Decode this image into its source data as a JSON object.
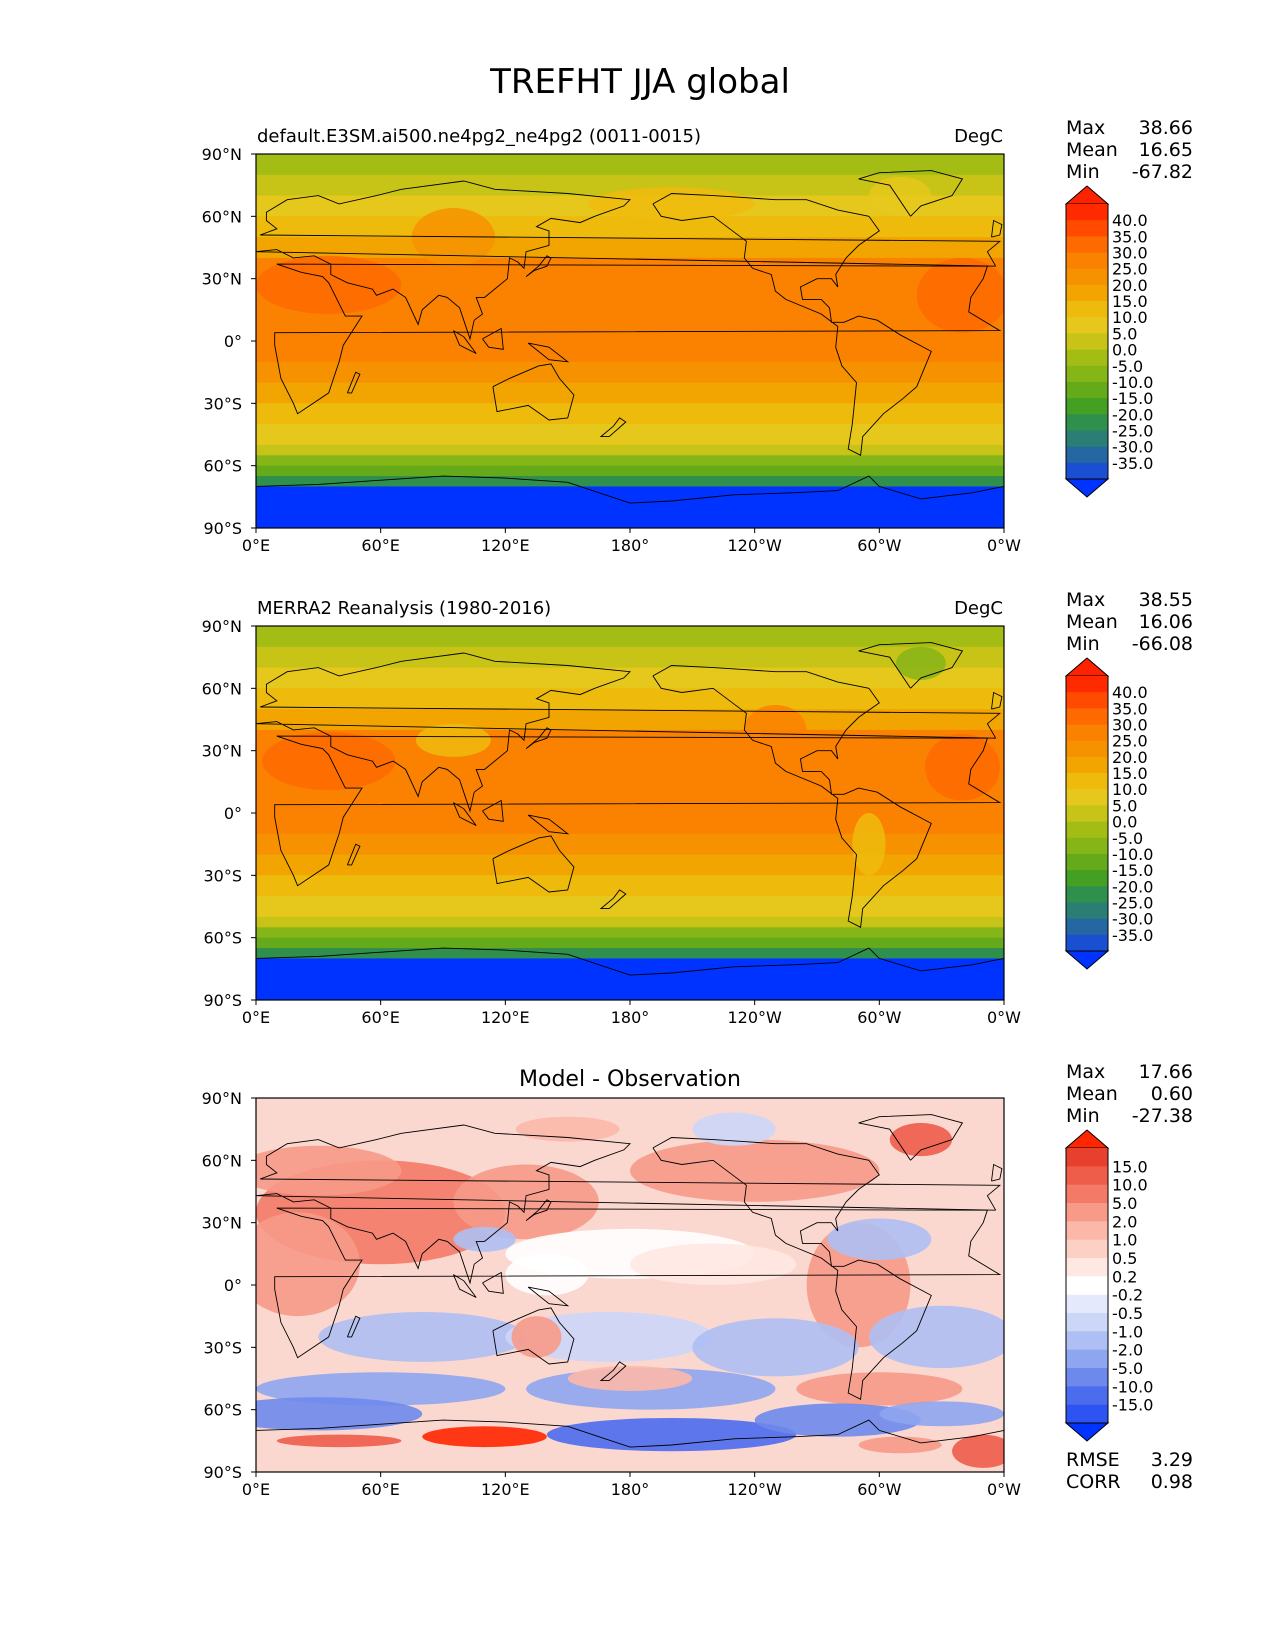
{
  "figure_title": "TREFHT JJA global",
  "x_ticks": [
    "0°E",
    "60°E",
    "120°E",
    "180°",
    "120°W",
    "60°W",
    "0°W"
  ],
  "y_ticks": [
    "90°N",
    "60°N",
    "30°N",
    "0°",
    "30°S",
    "60°S",
    "90°S"
  ],
  "chart_data": [
    {
      "type": "heatmap",
      "panel": "test",
      "title_left": "default.E3SM.ai500.ne4pg2_ne4pg2 (0011-0015)",
      "title_right": "DegC",
      "title_center": "",
      "stats": [
        {
          "label": "Max",
          "value": "38.66"
        },
        {
          "label": "Mean",
          "value": "16.65"
        },
        {
          "label": "Min",
          "value": "-67.82"
        }
      ],
      "colorbar_levels": [
        "40.0",
        "35.0",
        "30.0",
        "25.0",
        "20.0",
        "15.0",
        "10.0",
        "5.0",
        "0.0",
        "-5.0",
        "-10.0",
        "-15.0",
        "-20.0",
        "-25.0",
        "-30.0",
        "-35.0"
      ],
      "colorbar_colors": [
        "#ff2a00",
        "#ff4a00",
        "#fe6a00",
        "#fb8100",
        "#f69200",
        "#f2a500",
        "#eebb0d",
        "#e6c81c",
        "#c7c417",
        "#a4bd15",
        "#86b517",
        "#64aa1a",
        "#43a022",
        "#2f8f4d",
        "#2a7e74",
        "#2467a2",
        "#1b4fd2"
      ],
      "colorbar_over": "#ff2200",
      "colorbar_under": "#0033ff",
      "xlim_lon": [
        0,
        360
      ],
      "ylim_lat": [
        -90,
        90
      ],
      "extra_stats": []
    },
    {
      "type": "heatmap",
      "panel": "reference",
      "title_left": "MERRA2 Reanalysis (1980-2016)",
      "title_right": "DegC",
      "title_center": "",
      "stats": [
        {
          "label": "Max",
          "value": "38.55"
        },
        {
          "label": "Mean",
          "value": "16.06"
        },
        {
          "label": "Min",
          "value": "-66.08"
        }
      ],
      "colorbar_levels": [
        "40.0",
        "35.0",
        "30.0",
        "25.0",
        "20.0",
        "15.0",
        "10.0",
        "5.0",
        "0.0",
        "-5.0",
        "-10.0",
        "-15.0",
        "-20.0",
        "-25.0",
        "-30.0",
        "-35.0"
      ],
      "colorbar_colors": [
        "#ff2a00",
        "#ff4a00",
        "#fe6a00",
        "#fb8100",
        "#f69200",
        "#f2a500",
        "#eebb0d",
        "#e6c81c",
        "#c7c417",
        "#a4bd15",
        "#86b517",
        "#64aa1a",
        "#43a022",
        "#2f8f4d",
        "#2a7e74",
        "#2467a2",
        "#1b4fd2"
      ],
      "colorbar_over": "#ff2200",
      "colorbar_under": "#0033ff",
      "xlim_lon": [
        0,
        360
      ],
      "ylim_lat": [
        -90,
        90
      ],
      "extra_stats": []
    },
    {
      "type": "heatmap",
      "panel": "difference",
      "title_left": "",
      "title_right": "",
      "title_center": "Model - Observation",
      "stats": [
        {
          "label": "Max",
          "value": "17.66"
        },
        {
          "label": "Mean",
          "value": "0.60"
        },
        {
          "label": "Min",
          "value": "-27.38"
        }
      ],
      "colorbar_levels": [
        "15.0",
        "10.0",
        "5.0",
        "2.0",
        "1.0",
        "0.5",
        "0.2",
        "-0.2",
        "-0.5",
        "-1.0",
        "-2.0",
        "-5.0",
        "-10.0",
        "-15.0"
      ],
      "colorbar_colors": [
        "#e8402f",
        "#ee5c4a",
        "#f37a66",
        "#f79a88",
        "#fbb8a8",
        "#fdd0c5",
        "#ffe8e2",
        "#ffffff",
        "#e4e9fb",
        "#ccd6f7",
        "#aebff3",
        "#8ea5ef",
        "#6d89ec",
        "#4c6cee",
        "#2d54f2"
      ],
      "colorbar_over": "#ff2600",
      "colorbar_under": "#0033ff",
      "xlim_lon": [
        0,
        360
      ],
      "ylim_lat": [
        -90,
        90
      ],
      "extra_stats": [
        {
          "label": "RMSE",
          "value": "3.29"
        },
        {
          "label": "CORR",
          "value": "0.98"
        }
      ]
    }
  ]
}
